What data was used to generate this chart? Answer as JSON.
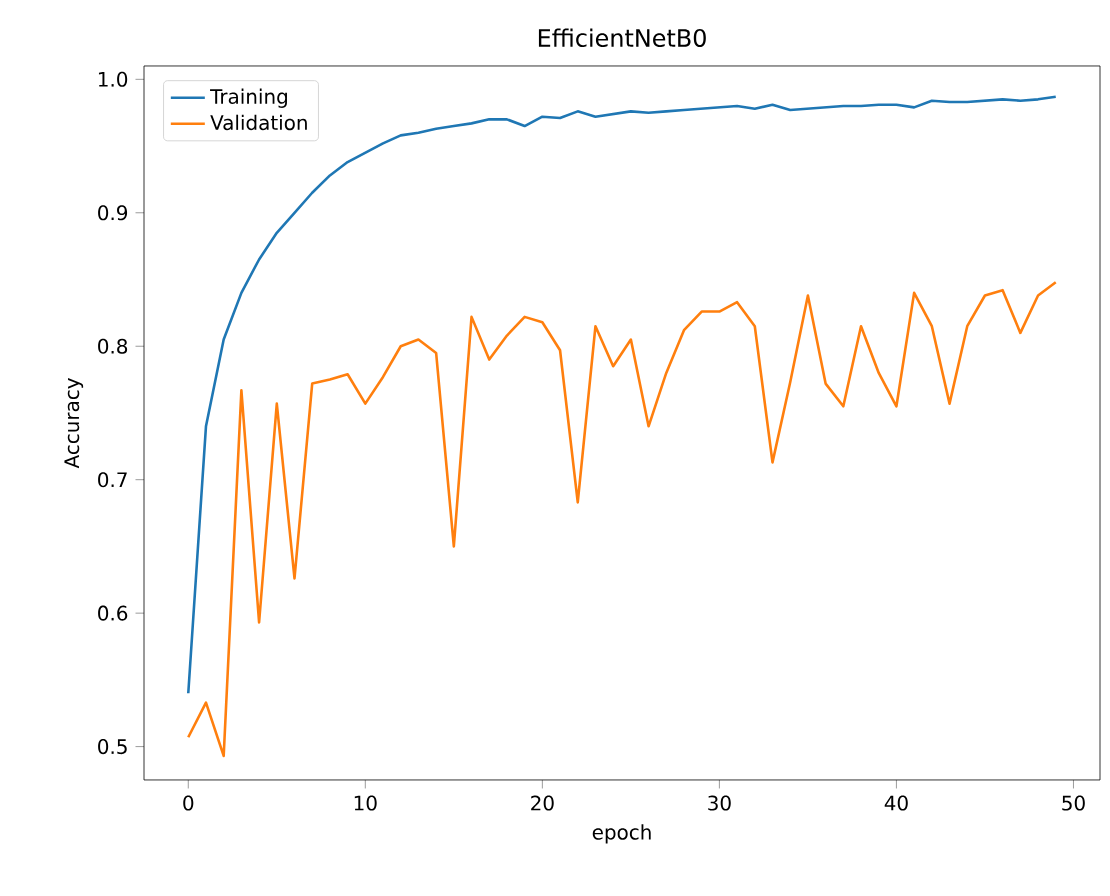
{
  "chart_data": {
    "type": "line",
    "title": "EfficientNetB0",
    "xlabel": "epoch",
    "ylabel": "Accuracy",
    "x": [
      0,
      1,
      2,
      3,
      4,
      5,
      6,
      7,
      8,
      9,
      10,
      11,
      12,
      13,
      14,
      15,
      16,
      17,
      18,
      19,
      20,
      21,
      22,
      23,
      24,
      25,
      26,
      27,
      28,
      29,
      30,
      31,
      32,
      33,
      34,
      35,
      36,
      37,
      38,
      39,
      40,
      41,
      42,
      43,
      44,
      45,
      46,
      47,
      48,
      49
    ],
    "series": [
      {
        "name": "Training",
        "color": "#1f77b4",
        "values": [
          0.54,
          0.74,
          0.805,
          0.84,
          0.865,
          0.885,
          0.9,
          0.915,
          0.928,
          0.938,
          0.945,
          0.952,
          0.958,
          0.96,
          0.963,
          0.965,
          0.967,
          0.97,
          0.97,
          0.965,
          0.972,
          0.971,
          0.976,
          0.972,
          0.974,
          0.976,
          0.975,
          0.976,
          0.977,
          0.978,
          0.979,
          0.98,
          0.978,
          0.981,
          0.977,
          0.978,
          0.979,
          0.98,
          0.98,
          0.981,
          0.981,
          0.979,
          0.984,
          0.983,
          0.983,
          0.984,
          0.985,
          0.984,
          0.985,
          0.987
        ]
      },
      {
        "name": "Validation",
        "color": "#ff7f0e",
        "values": [
          0.507,
          0.533,
          0.493,
          0.767,
          0.593,
          0.757,
          0.626,
          0.772,
          0.775,
          0.779,
          0.757,
          0.777,
          0.8,
          0.805,
          0.795,
          0.65,
          0.822,
          0.79,
          0.808,
          0.822,
          0.818,
          0.797,
          0.683,
          0.815,
          0.785,
          0.805,
          0.74,
          0.78,
          0.812,
          0.826,
          0.826,
          0.833,
          0.815,
          0.713,
          0.773,
          0.838,
          0.772,
          0.755,
          0.815,
          0.78,
          0.755,
          0.84,
          0.815,
          0.757,
          0.815,
          0.838,
          0.842,
          0.81,
          0.838,
          0.848
        ]
      }
    ],
    "xlim": [
      -2.5,
      51.5
    ],
    "ylim": [
      0.475,
      1.01
    ],
    "xticks": [
      0,
      10,
      20,
      30,
      40,
      50
    ],
    "yticks": [
      0.5,
      0.6,
      0.7,
      0.8,
      0.9,
      {
        "value": 1.0,
        "label": "1.0"
      }
    ],
    "legend": "top left",
    "grid": false,
    "marker": "none",
    "line_style": "solid"
  }
}
